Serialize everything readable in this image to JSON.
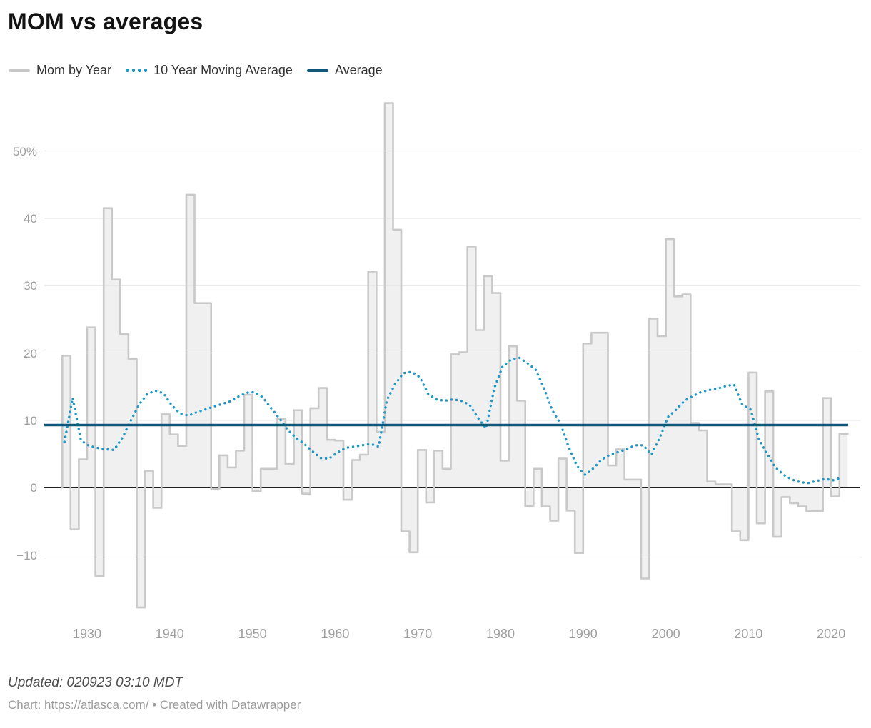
{
  "title": "MOM vs averages",
  "legend": [
    {
      "label": "Mom by Year",
      "swatch": "gray-line",
      "color": "#c8c8c8"
    },
    {
      "label": "10 Year Moving Average",
      "swatch": "blue-dotted",
      "color": "#1e97c5"
    },
    {
      "label": "Average",
      "swatch": "dark-solid",
      "color": "#10587a"
    }
  ],
  "footer": {
    "updated": "Updated: 020923 03:10 MDT",
    "credit": "Chart: https://atlasca.com/ • Created with Datawrapper"
  },
  "colors": {
    "step_stroke": "#c9c9c9",
    "step_fill": "#ededed",
    "moving_average": "#1e97c5",
    "average_line": "#10587a",
    "gridline": "#e4e4e4",
    "zero_line": "#1f1f1f",
    "axis_text": "#9e9e9e"
  },
  "chart_data": {
    "type": "line",
    "title": "MOM vs averages",
    "xlabel": "",
    "ylabel": "",
    "grid": true,
    "legend_position": "top",
    "xlim": [
      1926,
      2023
    ],
    "ylim": [
      -18.5,
      58
    ],
    "x_ticks": [
      1930,
      1940,
      1950,
      1960,
      1970,
      1980,
      1990,
      2000,
      2010,
      2020
    ],
    "y_ticks": [
      {
        "value": 50,
        "label": "50%"
      },
      {
        "value": 40,
        "label": "40"
      },
      {
        "value": 30,
        "label": "30"
      },
      {
        "value": 20,
        "label": "20"
      },
      {
        "value": 10,
        "label": "10"
      },
      {
        "value": 0,
        "label": "0"
      },
      {
        "value": -10,
        "label": "−10"
      }
    ],
    "years": [
      1927,
      1928,
      1929,
      1930,
      1931,
      1932,
      1933,
      1934,
      1935,
      1936,
      1937,
      1938,
      1939,
      1940,
      1941,
      1942,
      1943,
      1944,
      1945,
      1946,
      1947,
      1948,
      1949,
      1950,
      1951,
      1952,
      1953,
      1954,
      1955,
      1956,
      1957,
      1958,
      1959,
      1960,
      1961,
      1962,
      1963,
      1964,
      1965,
      1966,
      1967,
      1968,
      1969,
      1970,
      1971,
      1972,
      1973,
      1974,
      1975,
      1976,
      1977,
      1978,
      1979,
      1980,
      1981,
      1982,
      1983,
      1984,
      1985,
      1986,
      1987,
      1988,
      1989,
      1990,
      1991,
      1992,
      1993,
      1994,
      1995,
      1996,
      1997,
      1998,
      1999,
      2000,
      2001,
      2002,
      2003,
      2004,
      2005,
      2006,
      2007,
      2008,
      2009,
      2010,
      2011,
      2012,
      2013,
      2014,
      2015,
      2016,
      2017,
      2018,
      2019,
      2020,
      2021
    ],
    "series": [
      {
        "name": "Mom by Year",
        "style": "step",
        "values": [
          19.6,
          -6.2,
          4.2,
          23.8,
          -13.1,
          41.5,
          30.9,
          22.8,
          19.1,
          -17.8,
          2.5,
          -3.0,
          10.9,
          7.9,
          6.2,
          43.5,
          27.4,
          27.4,
          -0.2,
          4.8,
          3.0,
          5.5,
          13.8,
          -0.5,
          2.8,
          2.8,
          10.2,
          3.5,
          11.5,
          -0.9,
          11.8,
          14.8,
          7.1,
          7.0,
          -1.8,
          4.1,
          4.9,
          32.1,
          8.3,
          57.1,
          38.3,
          -6.5,
          -9.6,
          5.6,
          -2.2,
          5.5,
          2.8,
          19.8,
          20.1,
          35.8,
          23.4,
          31.4,
          28.9,
          4.0,
          21.0,
          12.9,
          -2.7,
          2.8,
          -2.8,
          -4.9,
          4.3,
          -3.4,
          -9.7,
          21.4,
          23.0,
          23.0,
          3.3,
          5.7,
          1.2,
          1.2,
          -13.5,
          25.1,
          22.5,
          36.9,
          28.4,
          28.7,
          9.6,
          8.5,
          0.9,
          0.5,
          0.5,
          -6.5,
          -7.8,
          17.1,
          -5.3,
          14.3,
          -7.3,
          -1.4,
          -2.3,
          -2.8,
          -3.5,
          -3.5,
          13.3,
          -1.3,
          8.0
        ]
      },
      {
        "name": "10 Year Moving Average",
        "style": "dotted",
        "values": [
          6.8,
          13.3,
          7.0,
          6.2,
          5.9,
          5.7,
          5.6,
          7.4,
          9.9,
          12.3,
          13.9,
          14.4,
          14.0,
          12.2,
          11.0,
          10.7,
          11.2,
          11.6,
          12.0,
          12.4,
          12.8,
          13.5,
          14.1,
          14.2,
          13.4,
          11.8,
          10.3,
          8.6,
          7.4,
          6.5,
          5.4,
          4.4,
          4.3,
          5.2,
          5.9,
          6.1,
          6.3,
          6.5,
          6.1,
          13.0,
          15.4,
          17.0,
          17.2,
          16.4,
          13.9,
          13.1,
          12.9,
          13.1,
          12.9,
          12.3,
          10.4,
          8.8,
          14.8,
          18.0,
          19.0,
          19.3,
          18.5,
          17.5,
          14.8,
          11.5,
          9.5,
          6.0,
          3.2,
          1.9,
          2.9,
          4.2,
          4.9,
          5.3,
          5.7,
          6.3,
          6.3,
          4.9,
          7.4,
          10.5,
          11.6,
          12.9,
          13.6,
          14.2,
          14.5,
          14.7,
          15.1,
          15.3,
          12.3,
          11.6,
          7.2,
          5.0,
          3.0,
          1.9,
          1.2,
          0.8,
          0.7,
          1.0,
          1.3,
          1.1,
          1.5
        ]
      },
      {
        "name": "Average",
        "style": "constant",
        "value": 9.3
      }
    ]
  }
}
